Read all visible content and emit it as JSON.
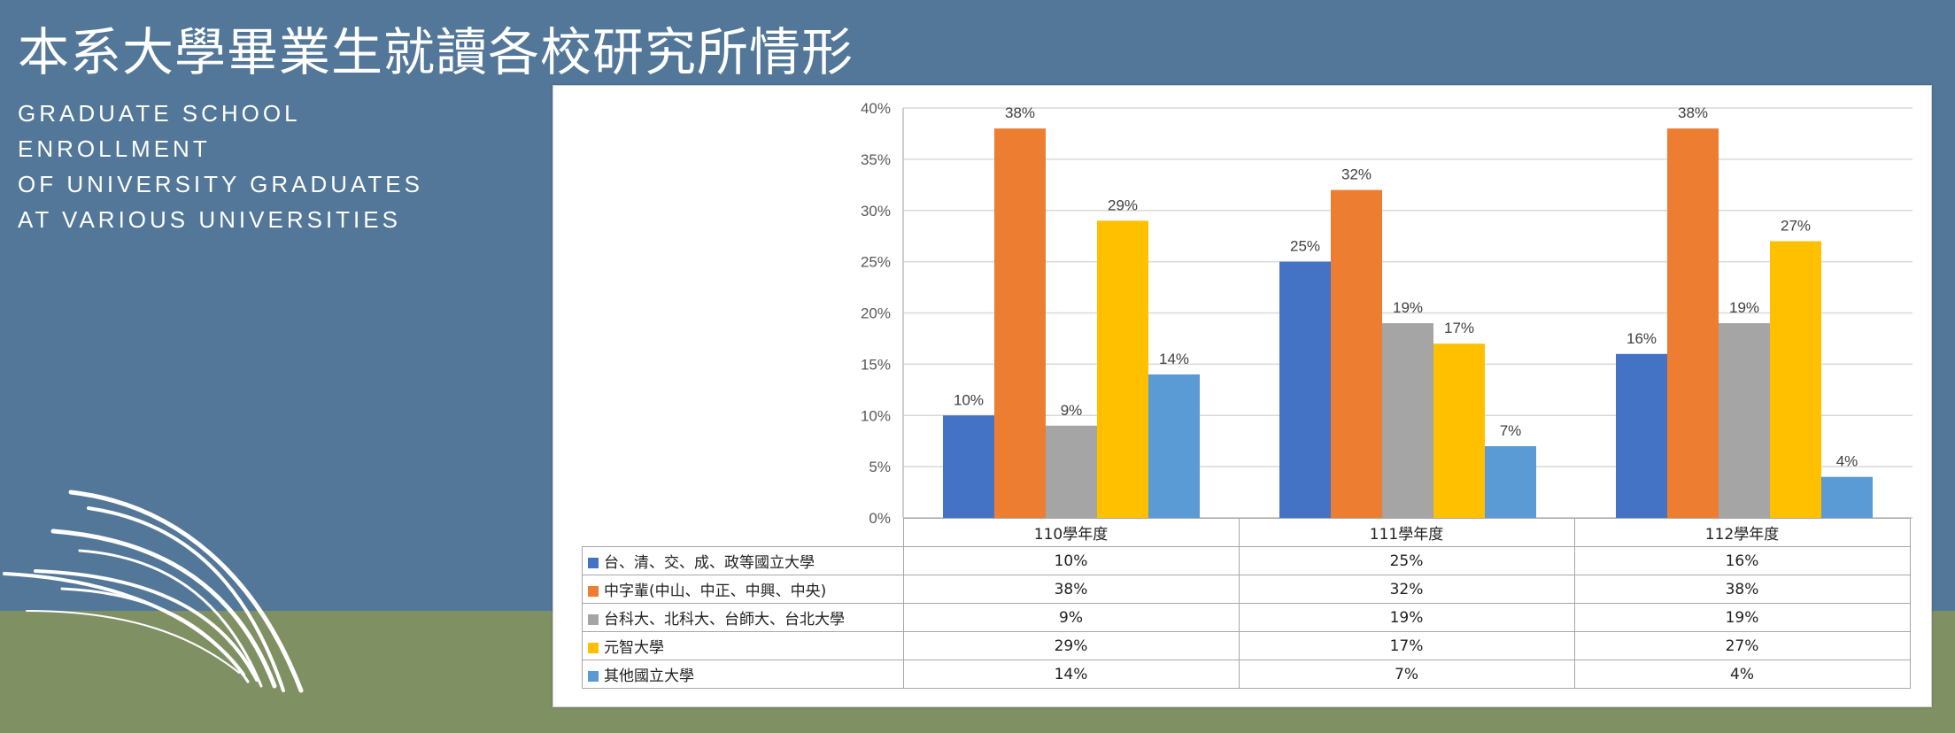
{
  "title": "本系大學畢業生就讀各校研究所情形",
  "subtitle": [
    "GRADUATE SCHOOL",
    "ENROLLMENT",
    "OF UNIVERSITY GRADUATES",
    "AT VARIOUS UNIVERSITIES"
  ],
  "chart_data": {
    "type": "bar",
    "categories": [
      "110學年度",
      "111學年度",
      "112學年度"
    ],
    "series": [
      {
        "name": "台、清、交、成、政等國立大學",
        "color": "#4472c4",
        "values": [
          10,
          25,
          16
        ],
        "labels": [
          "10%",
          "25%",
          "16%"
        ]
      },
      {
        "name": "中字輩(中山、中正、中興、中央)",
        "color": "#ed7d31",
        "values": [
          38,
          32,
          38
        ],
        "labels": [
          "38%",
          "32%",
          "38%"
        ]
      },
      {
        "name": "台科大、北科大、台師大、台北大學",
        "color": "#a5a5a5",
        "values": [
          9,
          19,
          19
        ],
        "labels": [
          "9%",
          "19%",
          "19%"
        ]
      },
      {
        "name": "元智大學",
        "color": "#ffc000",
        "values": [
          29,
          17,
          27
        ],
        "labels": [
          "29%",
          "17%",
          "27%"
        ]
      },
      {
        "name": "其他國立大學",
        "color": "#5b9bd5",
        "values": [
          14,
          7,
          4
        ],
        "labels": [
          "14%",
          "7%",
          "4%"
        ]
      }
    ],
    "ylim": [
      0,
      40
    ],
    "yticks": [
      "0%",
      "5%",
      "10%",
      "15%",
      "20%",
      "25%",
      "30%",
      "35%",
      "40%"
    ],
    "grid": true,
    "legend": "data-table-below"
  }
}
